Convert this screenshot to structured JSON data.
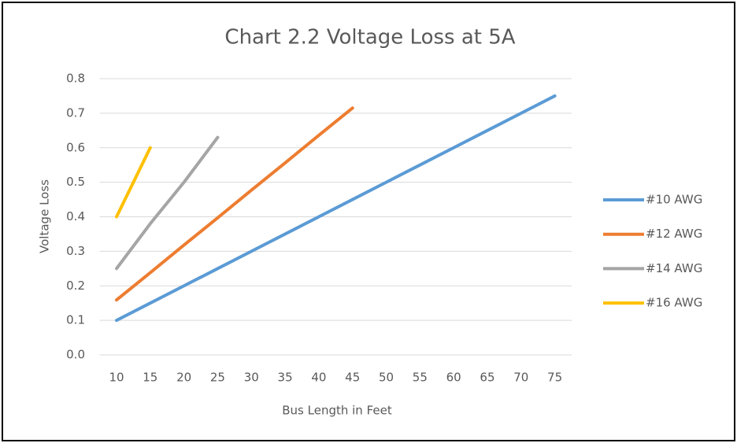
{
  "chart_data": {
    "type": "line",
    "title": "Chart 2.2 Voltage Loss at 5A",
    "x_label": "Bus Length  in Feet",
    "y_label": "Voltage Loss",
    "categories": [
      10,
      15,
      20,
      25,
      30,
      35,
      40,
      45,
      50,
      55,
      60,
      65,
      70,
      75
    ],
    "series": [
      {
        "name": "#10 AWG",
        "color": "#5b9bd5",
        "values": [
          0.1,
          0.15,
          0.2,
          0.25,
          0.3,
          0.35,
          0.4,
          0.45,
          0.5,
          0.55,
          0.6,
          0.65,
          0.7,
          0.75
        ]
      },
      {
        "name": "#12 AWG",
        "color": "#ed7d31",
        "values": [
          0.159,
          0.238,
          0.318,
          0.397,
          0.477,
          0.556,
          0.636,
          0.715,
          null,
          null,
          null,
          null,
          null,
          null
        ]
      },
      {
        "name": "#14 AWG",
        "color": "#a5a5a5",
        "values": [
          0.25,
          0.38,
          0.5,
          0.63,
          null,
          null,
          null,
          null,
          null,
          null,
          null,
          null,
          null,
          null
        ]
      },
      {
        "name": "#16 AWG",
        "color": "#ffc000",
        "values": [
          0.4,
          0.6,
          null,
          null,
          null,
          null,
          null,
          null,
          null,
          null,
          null,
          null,
          null,
          null
        ]
      }
    ],
    "ylim": [
      0,
      0.8
    ],
    "yticks": [
      {
        "value": 0,
        "label": "0.0"
      },
      0.1,
      0.2,
      0.3,
      0.4,
      0.5,
      0.6,
      0.7,
      0.8
    ],
    "grid": true,
    "legend": "right"
  }
}
